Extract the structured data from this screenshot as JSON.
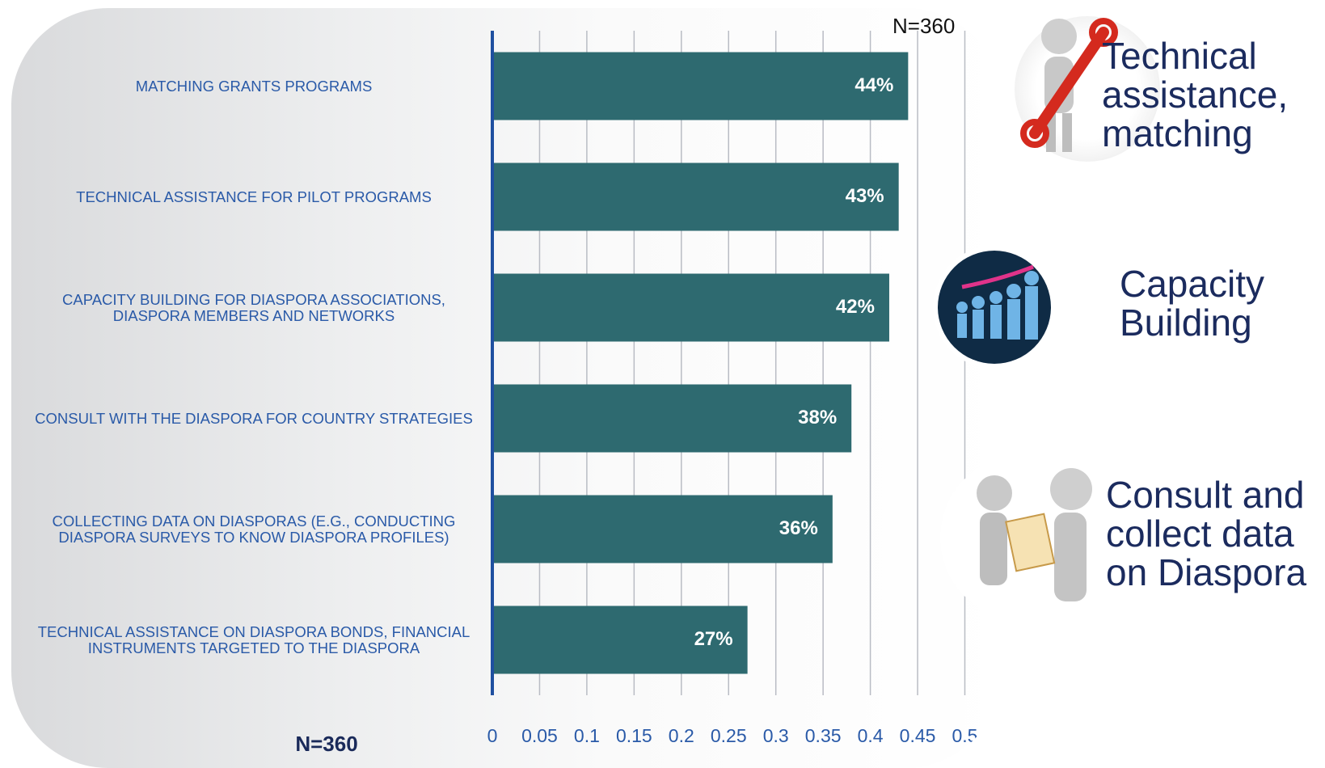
{
  "chart_data": {
    "type": "bar",
    "orientation": "horizontal",
    "categories": [
      "MATCHING  GRANTS PROGRAMS",
      "TECHNICAL  ASSISTANCE FOR PILOT PROGRAMS",
      "CAPACITY  BUILDING  FOR DIASPORA ASSOCIATIONS, DIASPORA MEMBERS AND NETWORKS",
      "CONSULT WITH THE DIASPORA FOR COUNTRY STRATEGIES",
      "COLLECTING DATA ON DIASPORAS (E.G., CONDUCTING DIASPORA SURVEYS TO KNOW DIASPORA PROFILES)",
      "TECHNICAL  ASSISTANCE  ON DIASPORA BONDS, FINANCIAL  INSTRUMENTS  TARGETED TO THE DIASPORA"
    ],
    "values": [
      0.44,
      0.43,
      0.42,
      0.38,
      0.36,
      0.27
    ],
    "value_labels": [
      "44%",
      "43%",
      "42%",
      "38%",
      "36%",
      "27%"
    ],
    "color": "#2e6a70",
    "xlim": [
      0,
      0.5
    ],
    "xticks": [
      0,
      0.05,
      0.1,
      0.15,
      0.2,
      0.25,
      0.3,
      0.35,
      0.4,
      0.45,
      0.5
    ],
    "grid": true,
    "sample_note": "N=360"
  },
  "side_labels": [
    "Technical assistance, matching",
    "Capacity Building",
    "Consult and collect data on Diaspora"
  ]
}
